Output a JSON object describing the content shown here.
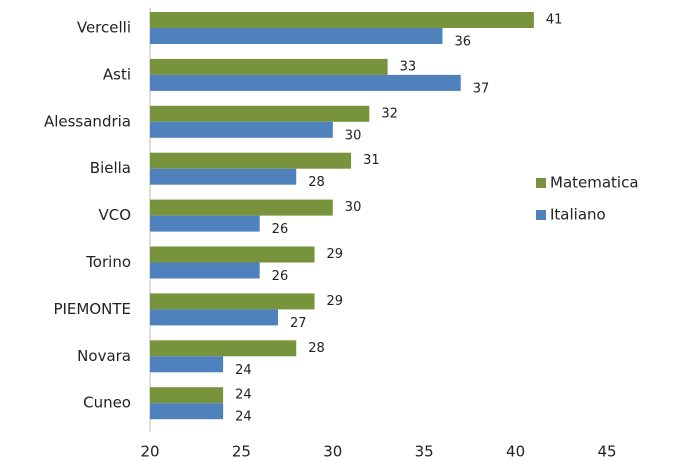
{
  "chart_data": {
    "type": "bar",
    "orientation": "horizontal",
    "categories": [
      "Vercelli",
      "Asti",
      "Alessandria",
      "Biella",
      "VCO",
      "Torino",
      "PIEMONTE",
      "Novara",
      "Cuneo"
    ],
    "series": [
      {
        "name": "Matematica",
        "color": "#77933c",
        "values": [
          41,
          33,
          32,
          31,
          30,
          29,
          29,
          28,
          24
        ]
      },
      {
        "name": "Italiano",
        "color": "#4f81bd",
        "values": [
          36,
          37,
          30,
          28,
          26,
          26,
          27,
          24,
          24
        ]
      }
    ],
    "xlim": [
      20,
      45
    ],
    "xticks": [
      20,
      25,
      30,
      35,
      40,
      45
    ],
    "grid": false,
    "legend": "right"
  }
}
